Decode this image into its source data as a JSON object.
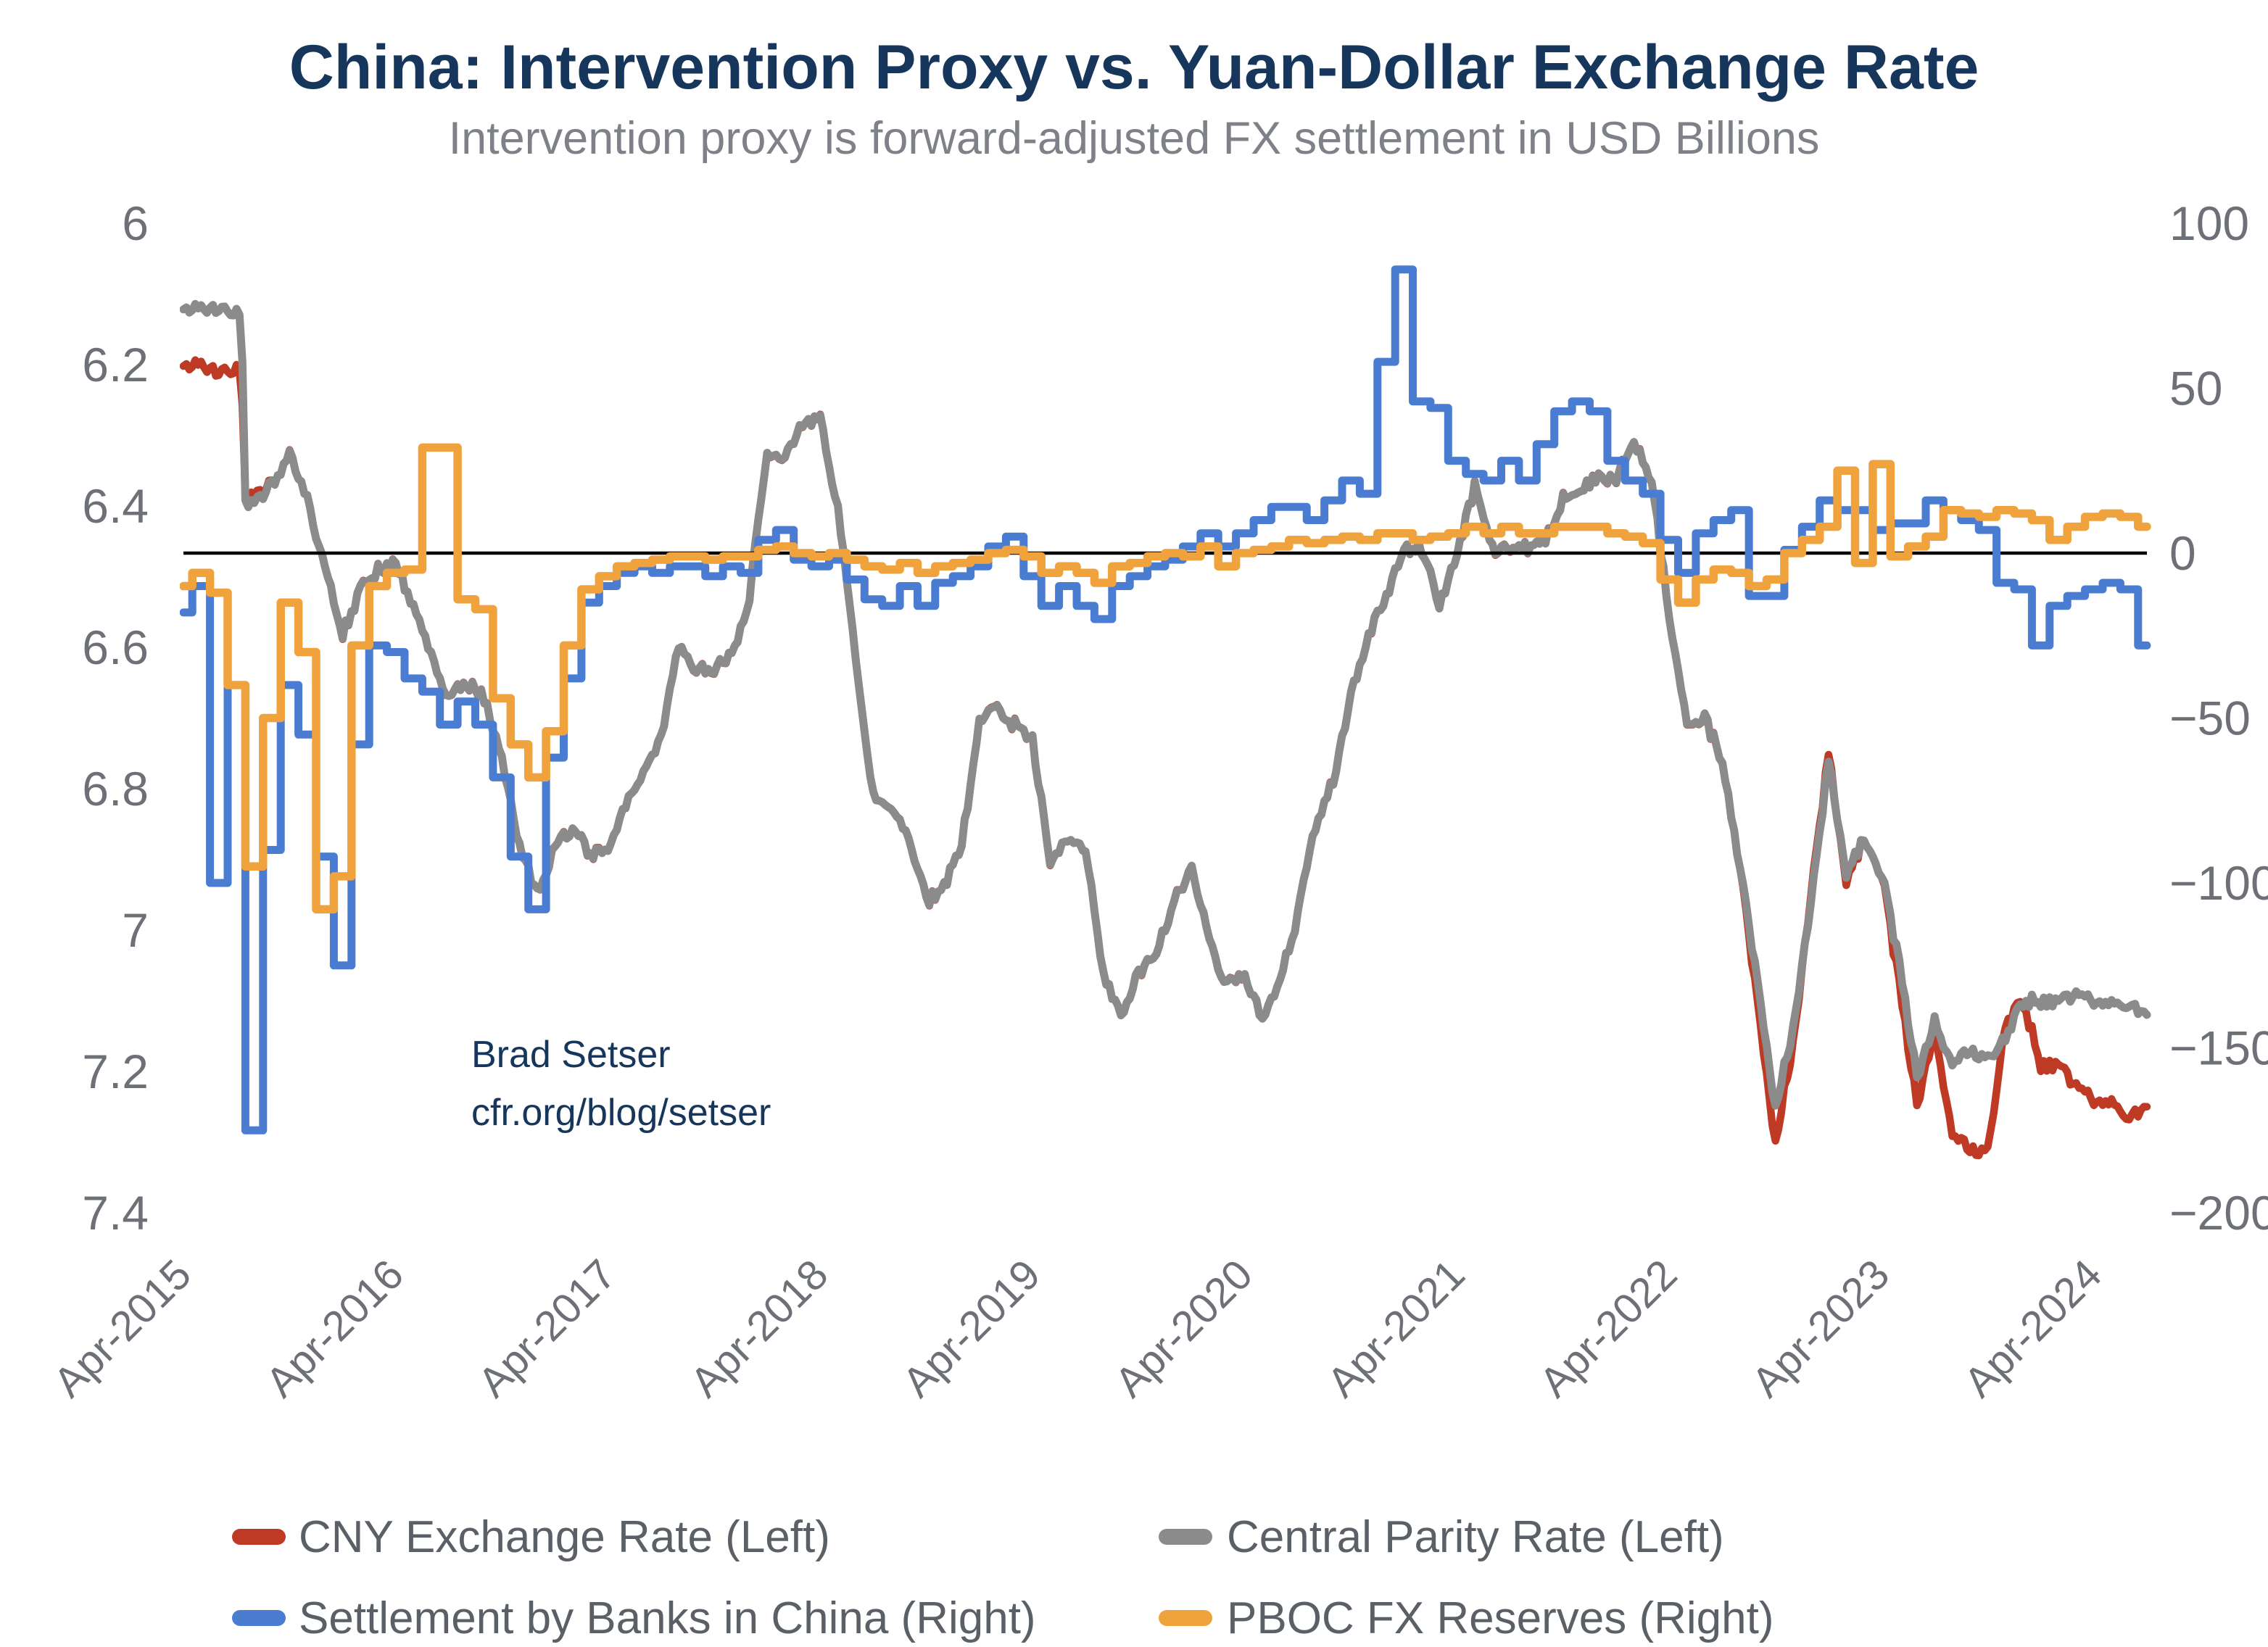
{
  "title": "China: Intervention Proxy vs. Yuan-Dollar Exchange Rate",
  "subtitle": "Intervention proxy is forward-adjusted FX settlement in USD Billions",
  "annotation": {
    "line1": "Brad Setser",
    "line2": "cfr.org/blog/setser"
  },
  "colors": {
    "title_navy": "#16365C",
    "subtitle_gray": "#7E8288",
    "axis_gray": "#6D7077",
    "legend_text": "#5A6066",
    "zero_line": "#000000",
    "cny_red": "#BE3A24",
    "parity_gray": "#8B8B8B",
    "settlement_blue": "#4A7CD2",
    "reserves_orange": "#F0A23C"
  },
  "chart_data": {
    "type": "line",
    "title": "China: Intervention Proxy vs. Yuan-Dollar Exchange Rate",
    "subtitle": "Intervention proxy is forward-adjusted FX settlement in USD Billions",
    "months": 112,
    "x_start_label": "Apr-2015",
    "x_end_label": "Jul-2024",
    "sharp_jump_index": 3,
    "grid": false,
    "left_axis": {
      "min": 6.0,
      "max": 7.4,
      "inverted_display": true,
      "ticks": [
        {
          "label": "6",
          "v": 6.0
        },
        {
          "label": "6.2",
          "v": 6.2
        },
        {
          "label": "6.4",
          "v": 6.4
        },
        {
          "label": "6.6",
          "v": 6.6
        },
        {
          "label": "6.8",
          "v": 6.8
        },
        {
          "label": "7",
          "v": 7.0
        },
        {
          "label": "7.2",
          "v": 7.2
        },
        {
          "label": "7.4",
          "v": 7.4
        }
      ]
    },
    "right_axis": {
      "min": -200,
      "max": 100,
      "zero_line": true,
      "ticks": [
        {
          "label": "100",
          "v": 100
        },
        {
          "label": "50",
          "v": 50
        },
        {
          "label": "0",
          "v": 0
        },
        {
          "label": "−50",
          "v": -50
        },
        {
          "label": "−100",
          "v": -100
        },
        {
          "label": "−150",
          "v": -150
        },
        {
          "label": "−200",
          "v": -200
        }
      ]
    },
    "x_axis": {
      "ticks": [
        {
          "label": "Apr-2015",
          "m": 0
        },
        {
          "label": "Apr-2016",
          "m": 12
        },
        {
          "label": "Apr-2017",
          "m": 24
        },
        {
          "label": "Apr-2018",
          "m": 36
        },
        {
          "label": "Apr-2019",
          "m": 48
        },
        {
          "label": "Apr-2020",
          "m": 60
        },
        {
          "label": "Apr-2021",
          "m": 72
        },
        {
          "label": "Apr-2022",
          "m": 84
        },
        {
          "label": "Apr-2023",
          "m": 96
        },
        {
          "label": "Apr-2024",
          "m": 108
        }
      ]
    },
    "series": [
      {
        "name": "CNY Exchange Rate (Left)",
        "axis": "left",
        "style": "daily",
        "color": "#BE3A24",
        "width": 10.5,
        "values": [
          6.2,
          6.2,
          6.21,
          6.21,
          6.39,
          6.37,
          6.33,
          6.39,
          6.49,
          6.58,
          6.52,
          6.49,
          6.48,
          6.54,
          6.61,
          6.67,
          6.65,
          6.67,
          6.76,
          6.88,
          6.95,
          6.88,
          6.86,
          6.89,
          6.89,
          6.82,
          6.78,
          6.73,
          6.6,
          6.63,
          6.63,
          6.61,
          6.53,
          6.32,
          6.33,
          6.28,
          6.28,
          6.4,
          6.62,
          6.81,
          6.83,
          6.87,
          6.96,
          6.94,
          6.88,
          6.7,
          6.69,
          6.71,
          6.73,
          6.9,
          6.87,
          6.88,
          7.06,
          7.12,
          7.06,
          7.03,
          6.96,
          6.91,
          7.02,
          7.08,
          7.06,
          7.13,
          7.07,
          6.98,
          6.85,
          6.79,
          6.67,
          6.58,
          6.53,
          6.46,
          6.46,
          6.54,
          6.47,
          6.37,
          6.46,
          6.46,
          6.46,
          6.45,
          6.39,
          6.38,
          6.36,
          6.36,
          6.31,
          6.36,
          6.56,
          6.7,
          6.7,
          6.76,
          6.91,
          7.11,
          7.3,
          7.16,
          6.95,
          6.75,
          6.93,
          6.87,
          6.92,
          7.08,
          7.25,
          7.14,
          7.29,
          7.31,
          7.31,
          7.13,
          7.1,
          7.19,
          7.19,
          7.22,
          7.24,
          7.24,
          7.27,
          7.25
        ]
      },
      {
        "name": "Central Parity Rate (Left)",
        "axis": "left",
        "style": "daily",
        "color": "#8B8B8B",
        "width": 11,
        "values": [
          6.12,
          6.12,
          6.12,
          6.13,
          6.4,
          6.37,
          6.33,
          6.39,
          6.49,
          6.58,
          6.52,
          6.49,
          6.48,
          6.54,
          6.61,
          6.67,
          6.65,
          6.67,
          6.76,
          6.88,
          6.95,
          6.88,
          6.86,
          6.89,
          6.89,
          6.82,
          6.78,
          6.73,
          6.6,
          6.63,
          6.63,
          6.61,
          6.53,
          6.32,
          6.33,
          6.28,
          6.28,
          6.4,
          6.62,
          6.81,
          6.83,
          6.87,
          6.96,
          6.94,
          6.88,
          6.7,
          6.69,
          6.71,
          6.73,
          6.9,
          6.87,
          6.88,
          7.06,
          7.12,
          7.06,
          7.03,
          6.96,
          6.91,
          7.02,
          7.08,
          7.06,
          7.13,
          7.07,
          6.98,
          6.85,
          6.79,
          6.67,
          6.58,
          6.53,
          6.46,
          6.46,
          6.54,
          6.47,
          6.37,
          6.46,
          6.46,
          6.46,
          6.45,
          6.39,
          6.38,
          6.36,
          6.36,
          6.31,
          6.36,
          6.56,
          6.7,
          6.7,
          6.76,
          6.91,
          7.08,
          7.25,
          7.14,
          6.96,
          6.76,
          6.92,
          6.87,
          6.92,
          7.05,
          7.21,
          7.13,
          7.19,
          7.17,
          7.18,
          7.15,
          7.1,
          7.1,
          7.1,
          7.09,
          7.1,
          7.1,
          7.11,
          7.12
        ]
      },
      {
        "name": "Settlement by Banks in China (Right)",
        "axis": "right",
        "style": "step",
        "color": "#4A7CD2",
        "width": 11,
        "values": [
          -18,
          -10,
          -100,
          -40,
          -175,
          -90,
          -40,
          -55,
          -92,
          -125,
          -58,
          -28,
          -30,
          -38,
          -42,
          -52,
          -45,
          -52,
          -68,
          -92,
          -108,
          -62,
          -38,
          -15,
          -10,
          -6,
          -4,
          -6,
          -4,
          -4,
          -7,
          -4,
          -6,
          4,
          7,
          -2,
          -4,
          -2,
          -8,
          -14,
          -16,
          -10,
          -16,
          -9,
          -7,
          -4,
          2,
          5,
          -7,
          -16,
          -10,
          -16,
          -20,
          -10,
          -7,
          -4,
          -2,
          2,
          6,
          2,
          6,
          10,
          14,
          14,
          10,
          16,
          22,
          18,
          58,
          86,
          46,
          44,
          28,
          24,
          22,
          28,
          22,
          33,
          43,
          46,
          43,
          28,
          22,
          18,
          4,
          -6,
          6,
          10,
          13,
          -13,
          -13,
          1,
          8,
          16,
          13,
          13,
          7,
          9,
          9,
          16,
          13,
          10,
          7,
          -9,
          -11,
          -28,
          -16,
          -13,
          -11,
          -9,
          -11,
          -28
        ]
      },
      {
        "name": "PBOC FX Reserves (Right)",
        "axis": "right",
        "style": "step",
        "color": "#F0A23C",
        "width": 11.5,
        "values": [
          -10,
          -6,
          -12,
          -40,
          -95,
          -50,
          -15,
          -30,
          -108,
          -98,
          -28,
          -10,
          -6,
          -5,
          32,
          32,
          -14,
          -17,
          -44,
          -58,
          -68,
          -54,
          -28,
          -11,
          -7,
          -4,
          -3,
          -2,
          -1,
          -1,
          -2,
          -1,
          -1,
          1,
          2,
          0,
          -1,
          0,
          -2,
          -4,
          -5,
          -3,
          -6,
          -4,
          -3,
          -2,
          0,
          1,
          -1,
          -6,
          -4,
          -6,
          -9,
          -4,
          -3,
          -1,
          0,
          -1,
          2,
          -4,
          0,
          1,
          2,
          4,
          3,
          4,
          5,
          4,
          6,
          6,
          4,
          5,
          6,
          8,
          6,
          8,
          6,
          6,
          8,
          8,
          8,
          6,
          5,
          3,
          -8,
          -15,
          -8,
          -5,
          -6,
          -10,
          -8,
          0,
          4,
          8,
          25,
          -3,
          27,
          -1,
          2,
          5,
          13,
          12,
          11,
          13,
          12,
          10,
          4,
          8,
          11,
          12,
          11,
          8
        ]
      }
    ],
    "legend": {
      "rows": [
        [
          {
            "label": "CNY Exchange Rate (Left)",
            "series": 0
          },
          {
            "label": "Central Parity Rate (Left)",
            "series": 1
          }
        ],
        [
          {
            "label": "Settlement by Banks in China (Right)",
            "series": 2
          },
          {
            "label": "PBOC FX Reserves (Right)",
            "series": 3
          }
        ]
      ],
      "position": "bottom"
    }
  }
}
